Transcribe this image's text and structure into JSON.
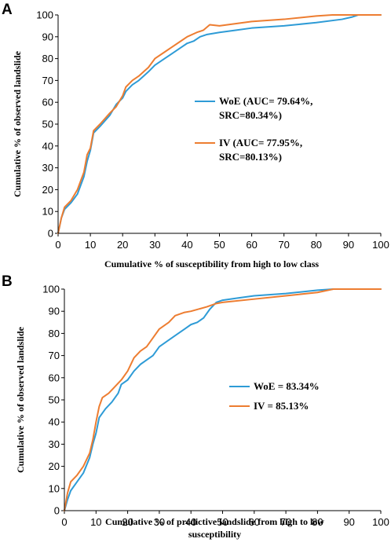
{
  "figure": {
    "colors": {
      "woe": "#2e9bd6",
      "iv": "#ed7d31",
      "axis": "#000000",
      "grid": "#d9d9d9"
    }
  },
  "chart_data": [
    {
      "type": "line",
      "panel_label": "A",
      "xlabel": "Cumulative % of susceptibility from high to low class",
      "xlabel_line2": "",
      "ylabel": "Cumulative % of observed landslide",
      "xlim": [
        0,
        100
      ],
      "ylim": [
        0,
        100
      ],
      "xticks": [
        "0",
        "10",
        "20",
        "30",
        "40",
        "50",
        "60",
        "70",
        "80",
        "90",
        "100"
      ],
      "yticks": [
        "0",
        "10",
        "20",
        "30",
        "40",
        "50",
        "60",
        "70",
        "80",
        "90",
        "100"
      ],
      "grid": false,
      "legend_position": "center-right",
      "series": [
        {
          "name": "WoE (AUC= 79.64%,",
          "name_line2": "SRC=80.34%)",
          "color": "#2e9bd6",
          "points": [
            [
              0,
              0
            ],
            [
              1,
              7
            ],
            [
              2,
              11
            ],
            [
              4,
              14
            ],
            [
              6,
              18
            ],
            [
              8,
              26
            ],
            [
              9,
              33
            ],
            [
              10,
              38
            ],
            [
              11,
              46
            ],
            [
              13,
              49
            ],
            [
              16,
              54
            ],
            [
              18,
              59
            ],
            [
              20,
              62
            ],
            [
              21,
              65
            ],
            [
              23,
              68
            ],
            [
              25,
              70
            ],
            [
              28,
              74
            ],
            [
              30,
              77
            ],
            [
              33,
              80
            ],
            [
              35,
              82
            ],
            [
              38,
              85
            ],
            [
              40,
              87
            ],
            [
              42,
              88
            ],
            [
              44,
              90
            ],
            [
              46,
              91
            ],
            [
              50,
              92
            ],
            [
              55,
              93
            ],
            [
              60,
              94
            ],
            [
              70,
              95
            ],
            [
              80,
              96.5
            ],
            [
              88,
              98
            ],
            [
              91,
              99
            ],
            [
              93,
              100
            ],
            [
              100,
              100
            ]
          ]
        },
        {
          "name": "IV (AUC= 77.95%,",
          "name_line2": "SRC=80.13%)",
          "color": "#ed7d31",
          "points": [
            [
              0,
              0
            ],
            [
              1,
              7
            ],
            [
              2,
              12
            ],
            [
              4,
              15
            ],
            [
              6,
              20
            ],
            [
              8,
              28
            ],
            [
              9,
              36
            ],
            [
              10,
              39
            ],
            [
              11,
              47
            ],
            [
              13,
              50
            ],
            [
              16,
              55
            ],
            [
              18,
              58
            ],
            [
              20,
              63
            ],
            [
              21,
              67
            ],
            [
              23,
              70
            ],
            [
              25,
              72
            ],
            [
              28,
              76
            ],
            [
              30,
              80
            ],
            [
              33,
              83
            ],
            [
              35,
              85
            ],
            [
              38,
              88
            ],
            [
              40,
              90
            ],
            [
              43,
              92
            ],
            [
              45,
              93
            ],
            [
              47,
              95.5
            ],
            [
              50,
              95
            ],
            [
              55,
              96
            ],
            [
              60,
              97
            ],
            [
              70,
              98
            ],
            [
              80,
              99.5
            ],
            [
              85,
              100
            ],
            [
              100,
              100
            ]
          ]
        }
      ]
    },
    {
      "type": "line",
      "panel_label": "B",
      "xlabel": "Cumulative % of predictive landslide from high to low",
      "xlabel_line2": "susceptibility",
      "ylabel": "Cumulative % of observed landslide",
      "xlim": [
        0,
        100
      ],
      "ylim": [
        0,
        100
      ],
      "xticks": [
        "0",
        "10",
        "20",
        "30",
        "40",
        "50",
        "60",
        "70",
        "80",
        "90",
        "100"
      ],
      "yticks": [
        "0",
        "10",
        "20",
        "30",
        "40",
        "50",
        "60",
        "70",
        "80",
        "90",
        "100"
      ],
      "grid": false,
      "legend_position": "center-right",
      "series": [
        {
          "name": "WoE = 83.34%",
          "name_line2": "",
          "color": "#2e9bd6",
          "points": [
            [
              0,
              0
            ],
            [
              1,
              5
            ],
            [
              2,
              9
            ],
            [
              4,
              13
            ],
            [
              6,
              17
            ],
            [
              8,
              24
            ],
            [
              9,
              30
            ],
            [
              10,
              35
            ],
            [
              11,
              42
            ],
            [
              13,
              46
            ],
            [
              15,
              49
            ],
            [
              17,
              53
            ],
            [
              18,
              57
            ],
            [
              20,
              59
            ],
            [
              22,
              63
            ],
            [
              24,
              66
            ],
            [
              26,
              68
            ],
            [
              28,
              70
            ],
            [
              30,
              74
            ],
            [
              33,
              77
            ],
            [
              35,
              79
            ],
            [
              38,
              82
            ],
            [
              40,
              84
            ],
            [
              42,
              85
            ],
            [
              44,
              87
            ],
            [
              46,
              91
            ],
            [
              48,
              94
            ],
            [
              50,
              95
            ],
            [
              55,
              96
            ],
            [
              60,
              97
            ],
            [
              70,
              98
            ],
            [
              80,
              99.5
            ],
            [
              85,
              100
            ],
            [
              100,
              100
            ]
          ]
        },
        {
          "name": "IV = 85.13%",
          "name_line2": "",
          "color": "#ed7d31",
          "points": [
            [
              0,
              0
            ],
            [
              1,
              8
            ],
            [
              2,
              13
            ],
            [
              4,
              16
            ],
            [
              6,
              20
            ],
            [
              8,
              26
            ],
            [
              9,
              32
            ],
            [
              10,
              40
            ],
            [
              11,
              47
            ],
            [
              12,
              51
            ],
            [
              14,
              53
            ],
            [
              16,
              56
            ],
            [
              18,
              59
            ],
            [
              20,
              63
            ],
            [
              22,
              69
            ],
            [
              24,
              72
            ],
            [
              26,
              74
            ],
            [
              28,
              78
            ],
            [
              30,
              82
            ],
            [
              33,
              85
            ],
            [
              35,
              88
            ],
            [
              38,
              89.5
            ],
            [
              40,
              90
            ],
            [
              45,
              92
            ],
            [
              48,
              93.5
            ],
            [
              50,
              94
            ],
            [
              60,
              95.5
            ],
            [
              70,
              97
            ],
            [
              80,
              98.5
            ],
            [
              85,
              100
            ],
            [
              100,
              100
            ]
          ]
        }
      ]
    }
  ]
}
